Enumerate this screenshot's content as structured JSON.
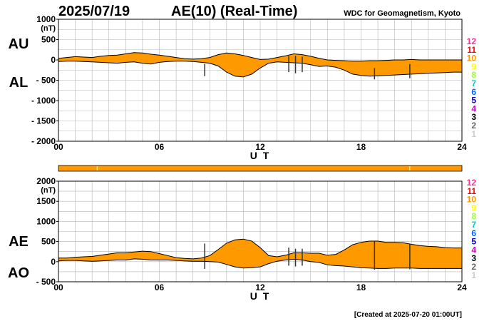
{
  "header": {
    "date": "2025/07/19",
    "title": "AE(10) (Real-Time)",
    "org": "WDC for Geomagnetism, Kyoto"
  },
  "footer": {
    "created": "[Created at 2025-07-20 01:00UT]"
  },
  "colors": {
    "fill": "#ff9900",
    "axis": "#000000",
    "grid": "#b4b4b4",
    "bar": "#ff9900",
    "bar_marks": "#ffff99"
  },
  "legend": {
    "items": [
      {
        "label": "12",
        "color": "#ff3399"
      },
      {
        "label": "11",
        "color": "#ff0000"
      },
      {
        "label": "10",
        "color": "#ff9900"
      },
      {
        "label": "9",
        "color": "#ffff00"
      },
      {
        "label": "8",
        "color": "#99ff33"
      },
      {
        "label": "7",
        "color": "#00cccc"
      },
      {
        "label": "6",
        "color": "#0066ff"
      },
      {
        "label": "5",
        "color": "#0000cc"
      },
      {
        "label": "4",
        "color": "#cc00cc"
      },
      {
        "label": "3",
        "color": "#000000"
      },
      {
        "label": "2",
        "color": "#666666"
      },
      {
        "label": "1",
        "color": "#cccccc"
      }
    ]
  },
  "chart_data": [
    {
      "type": "area",
      "name": "AU/AL",
      "label_upper": "AU",
      "label_lower": "AL",
      "unit": "(nT)",
      "xlabel": "U T",
      "xlim": [
        0,
        24
      ],
      "ylim": [
        -2000,
        1000
      ],
      "yticks": [
        1000,
        500,
        0,
        -500,
        -1000,
        -1500,
        -2000
      ],
      "ytick_labels": [
        "1000",
        "500",
        "0",
        "- 500",
        "- 1000",
        "- 1500",
        "- 2000"
      ],
      "xtick_labels": [
        "00",
        "06",
        "12",
        "18",
        "24"
      ],
      "xticks": [
        0,
        6,
        12,
        18,
        24
      ],
      "grid": true,
      "upper": {
        "x": [
          0,
          0.5,
          1,
          1.5,
          2,
          2.5,
          3,
          3.5,
          4,
          4.5,
          5,
          5.5,
          6,
          6.5,
          7,
          7.5,
          8,
          8.5,
          9,
          9.5,
          10,
          10.5,
          11,
          11.5,
          12,
          12.5,
          13,
          13.5,
          14,
          14.5,
          15,
          15.5,
          16,
          16.5,
          17,
          17.5,
          18,
          18.5,
          19,
          19.5,
          20,
          20.5,
          21,
          21.5,
          22,
          22.5,
          23,
          23.5,
          24
        ],
        "y": [
          40,
          60,
          80,
          70,
          60,
          90,
          110,
          120,
          150,
          180,
          170,
          140,
          120,
          90,
          60,
          30,
          20,
          30,
          60,
          130,
          170,
          150,
          110,
          60,
          10,
          20,
          60,
          100,
          150,
          130,
          90,
          40,
          0,
          -10,
          -20,
          -30,
          -30,
          -20,
          -20,
          -10,
          0,
          0,
          10,
          0,
          0,
          0,
          0,
          0,
          0
        ]
      },
      "lower": {
        "x": [
          0,
          0.5,
          1,
          1.5,
          2,
          2.5,
          3,
          3.5,
          4,
          4.5,
          5,
          5.5,
          6,
          6.5,
          7,
          7.5,
          8,
          8.5,
          9,
          9.5,
          10,
          10.5,
          11,
          11.5,
          12,
          12.5,
          13,
          13.5,
          14,
          14.5,
          15,
          15.5,
          16,
          16.5,
          17,
          17.5,
          18,
          18.5,
          19,
          19.5,
          20,
          20.5,
          21,
          21.5,
          22,
          22.5,
          23,
          23.5,
          24
        ],
        "y": [
          -40,
          -30,
          -30,
          -40,
          -50,
          -60,
          -70,
          -80,
          -60,
          -50,
          -80,
          -100,
          -60,
          -40,
          -30,
          -30,
          -40,
          -60,
          -80,
          -150,
          -300,
          -400,
          -420,
          -350,
          -200,
          -80,
          -50,
          -60,
          -70,
          -80,
          -120,
          -160,
          -150,
          -180,
          -250,
          -350,
          -380,
          -400,
          -390,
          -380,
          -370,
          -360,
          -350,
          -340,
          -330,
          -320,
          -310,
          -300,
          -300
        ]
      },
      "spikes": [
        {
          "x": 8.7,
          "y0": -100,
          "y1": -400
        },
        {
          "x": 13.7,
          "y0": 100,
          "y1": -300
        },
        {
          "x": 14.1,
          "y0": 100,
          "y1": -330
        },
        {
          "x": 14.5,
          "y0": 80,
          "y1": -300
        },
        {
          "x": 18.8,
          "y0": -200,
          "y1": -480
        },
        {
          "x": 20.9,
          "y0": -100,
          "y1": -450
        }
      ]
    },
    {
      "type": "area",
      "name": "AE/AO",
      "label_upper": "AE",
      "label_lower": "AO",
      "unit": "(nT)",
      "xlabel": "U T",
      "xlim": [
        0,
        24
      ],
      "ylim": [
        -500,
        2000
      ],
      "yticks": [
        2000,
        1500,
        1000,
        500,
        0,
        -500
      ],
      "ytick_labels": [
        "2000",
        "1500",
        "1000",
        "500",
        "0",
        "- 500"
      ],
      "xtick_labels": [
        "00",
        "06",
        "12",
        "18",
        "24"
      ],
      "xticks": [
        0,
        6,
        12,
        18,
        24
      ],
      "grid": true,
      "upper": {
        "x": [
          0,
          0.5,
          1,
          1.5,
          2,
          2.5,
          3,
          3.5,
          4,
          4.5,
          5,
          5.5,
          6,
          6.5,
          7,
          7.5,
          8,
          8.5,
          9,
          9.5,
          10,
          10.5,
          11,
          11.5,
          12,
          12.5,
          13,
          13.5,
          14,
          14.5,
          15,
          15.5,
          16,
          16.5,
          17,
          17.5,
          18,
          18.5,
          19,
          19.5,
          20,
          20.5,
          21,
          21.5,
          22,
          22.5,
          23,
          23.5,
          24
        ],
        "y": [
          90,
          90,
          110,
          120,
          130,
          160,
          190,
          220,
          220,
          240,
          260,
          250,
          200,
          150,
          100,
          80,
          70,
          90,
          150,
          300,
          460,
          540,
          560,
          510,
          350,
          150,
          120,
          160,
          220,
          220,
          210,
          210,
          160,
          180,
          290,
          420,
          480,
          510,
          510,
          480,
          480,
          470,
          430,
          400,
          380,
          370,
          350,
          340,
          340
        ]
      },
      "lower": {
        "x": [
          0,
          0.5,
          1,
          1.5,
          2,
          2.5,
          3,
          3.5,
          4,
          4.5,
          5,
          5.5,
          6,
          6.5,
          7,
          7.5,
          8,
          8.5,
          9,
          9.5,
          10,
          10.5,
          11,
          11.5,
          12,
          12.5,
          13,
          13.5,
          14,
          14.5,
          15,
          15.5,
          16,
          16.5,
          17,
          17.5,
          18,
          18.5,
          19,
          19.5,
          20,
          20.5,
          21,
          21.5,
          22,
          22.5,
          23,
          23.5,
          24
        ],
        "y": [
          20,
          30,
          30,
          20,
          10,
          20,
          30,
          40,
          40,
          70,
          60,
          40,
          40,
          40,
          30,
          20,
          10,
          10,
          0,
          -10,
          -70,
          -130,
          -160,
          -150,
          -130,
          -50,
          10,
          40,
          60,
          40,
          0,
          -20,
          -80,
          -100,
          -110,
          -130,
          -150,
          -160,
          -170,
          -170,
          -160,
          -160,
          -160,
          -170,
          -170,
          -170,
          -170,
          -170,
          -170
        ]
      },
      "spikes": [
        {
          "x": 8.7,
          "y0": 450,
          "y1": -180
        },
        {
          "x": 13.7,
          "y0": 350,
          "y1": -100
        },
        {
          "x": 14.1,
          "y0": 320,
          "y1": -120
        },
        {
          "x": 14.5,
          "y0": 320,
          "y1": -100
        },
        {
          "x": 18.8,
          "y0": 500,
          "y1": -200
        },
        {
          "x": 20.9,
          "y0": 450,
          "y1": -190
        }
      ]
    }
  ],
  "status_bar": {
    "marks_x": [
      2.3,
      20.9
    ]
  }
}
